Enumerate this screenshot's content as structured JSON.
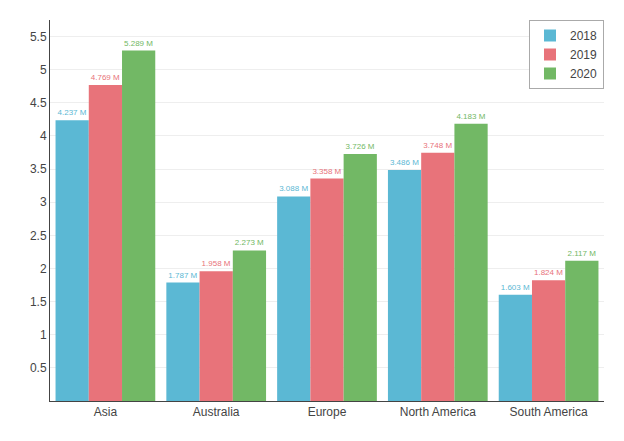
{
  "chart_data": {
    "type": "bar",
    "categories": [
      "Asia",
      "Australia",
      "Europe",
      "North America",
      "South America"
    ],
    "series": [
      {
        "name": "2018",
        "color": "#5BB8D4",
        "values": [
          4.237,
          1.787,
          3.088,
          3.486,
          1.603
        ],
        "value_labels": [
          "4.237 M",
          "1.787 M",
          "3.088 M",
          "3.486 M",
          "1.603 M"
        ]
      },
      {
        "name": "2019",
        "color": "#E8737A",
        "values": [
          4.769,
          1.958,
          3.358,
          3.748,
          1.824
        ],
        "value_labels": [
          "4.769 M",
          "1.958 M",
          "3.358 M",
          "3.748 M",
          "1.824 M"
        ]
      },
      {
        "name": "2020",
        "color": "#72B865",
        "values": [
          5.289,
          2.273,
          3.726,
          4.183,
          2.117
        ],
        "value_labels": [
          "5.289 M",
          "2.273 M",
          "3.726 M",
          "4.183 M",
          "2.117 M"
        ]
      }
    ],
    "ylim": [
      0,
      5.75
    ],
    "yticks": [
      0.5,
      1,
      1.5,
      2,
      2.5,
      3,
      3.5,
      4,
      4.5,
      5,
      5.5
    ],
    "grid": true,
    "legend": "upper right",
    "data_labels": true
  }
}
